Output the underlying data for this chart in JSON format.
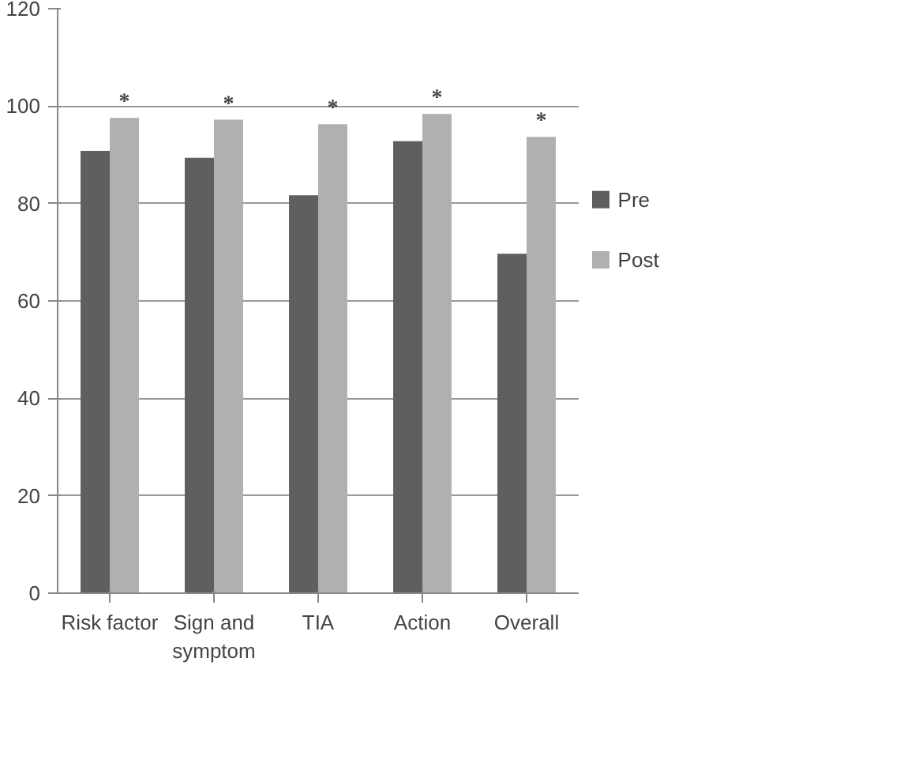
{
  "chart_data": {
    "type": "bar",
    "categories": [
      "Risk factor",
      "Sign and symptom",
      "TIA",
      "Action",
      "Overall"
    ],
    "series": [
      {
        "name": "Pre",
        "color": "#5f5f5f",
        "values": [
          90.8,
          89.4,
          81.7,
          92.8,
          69.7
        ]
      },
      {
        "name": "Post",
        "color": "#b0b0b0",
        "values": [
          97.6,
          97.2,
          96.3,
          98.4,
          93.7
        ]
      }
    ],
    "ylim": [
      0,
      120
    ],
    "yticks": [
      0,
      20,
      40,
      60,
      80,
      100,
      120
    ],
    "grid": "y",
    "legend": "right",
    "annotations": [
      "*",
      "*",
      "*",
      "*",
      "*"
    ]
  }
}
